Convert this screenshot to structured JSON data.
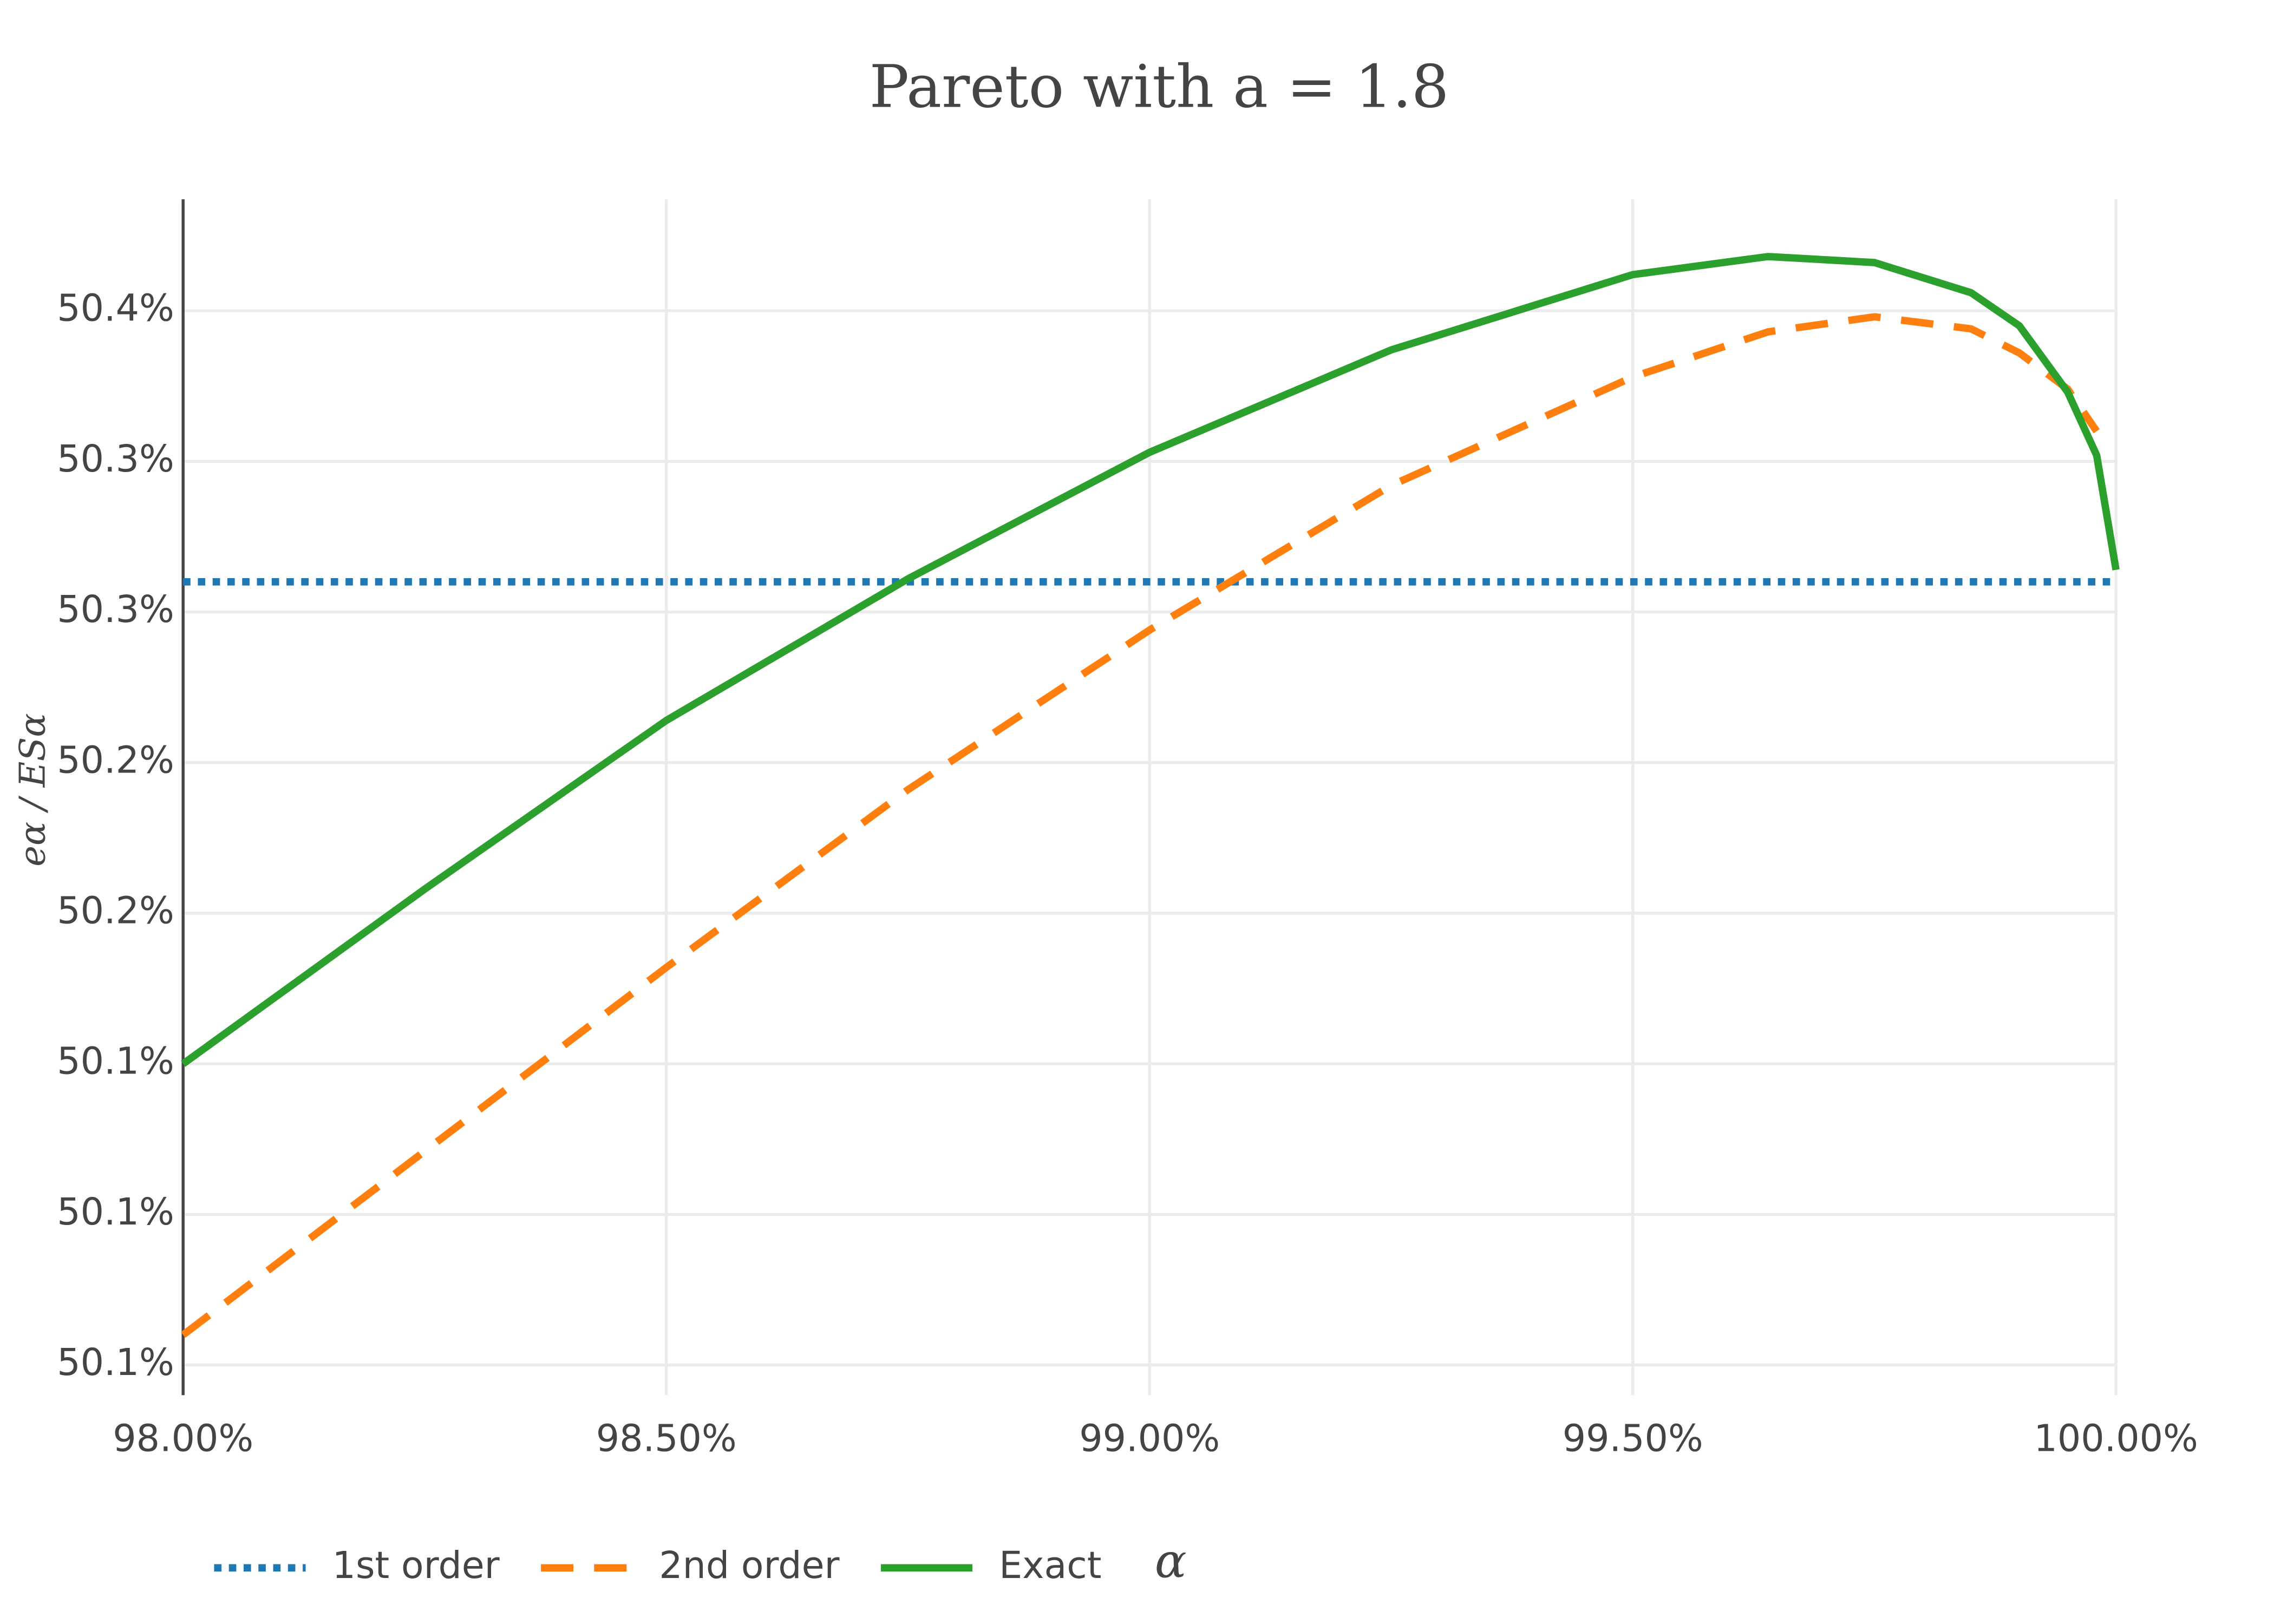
{
  "chart_data": {
    "type": "line",
    "title": "Pareto with a = 1.8",
    "x_label": "α",
    "y_label": "eα / ESα",
    "x": [
      98,
      98.25,
      98.5,
      98.75,
      99,
      99.25,
      99.5,
      99.64,
      99.75,
      99.85,
      99.9,
      99.95,
      99.98,
      100
    ],
    "series": [
      {
        "name": "1st order",
        "color": "#1f77b4",
        "dash": "dot",
        "values": [
          50.31,
          50.31,
          50.31,
          50.31,
          50.31,
          50.31,
          50.31,
          50.31,
          50.31,
          50.31,
          50.31,
          50.31,
          50.31,
          50.31
        ]
      },
      {
        "name": "2nd order",
        "color": "#ff7f0e",
        "dash": "dash",
        "values": [
          50.06,
          50.121,
          50.182,
          50.241,
          50.294,
          50.342,
          50.378,
          50.393,
          50.398,
          50.394,
          50.386,
          50.374,
          50.36,
          null
        ]
      },
      {
        "name": "Exact",
        "color": "#2ca02c",
        "dash": "solid",
        "values": [
          50.15,
          50.208,
          50.264,
          50.311,
          50.353,
          50.387,
          50.412,
          50.418,
          50.416,
          50.406,
          50.395,
          50.373,
          50.352,
          50.314
        ]
      }
    ],
    "xlim": [
      98,
      100
    ],
    "xticks": [
      {
        "value": 98,
        "label": "98.00%"
      },
      {
        "value": 98.5,
        "label": "98.50%"
      },
      {
        "value": 99,
        "label": "99.00%"
      },
      {
        "value": 99.5,
        "label": "99.50%"
      },
      {
        "value": 100,
        "label": "100.00%"
      }
    ],
    "ylim": [
      50.04,
      50.437
    ],
    "yticks": [
      {
        "value": 50.05,
        "label": "50.1%"
      },
      {
        "value": 50.1,
        "label": "50.1%"
      },
      {
        "value": 50.15,
        "label": "50.1%"
      },
      {
        "value": 50.2,
        "label": "50.2%"
      },
      {
        "value": 50.25,
        "label": "50.2%"
      },
      {
        "value": 50.3,
        "label": "50.3%"
      },
      {
        "value": 50.35,
        "label": "50.3%"
      },
      {
        "value": 50.4,
        "label": "50.4%"
      }
    ],
    "grid": true,
    "legend": "bottom"
  }
}
